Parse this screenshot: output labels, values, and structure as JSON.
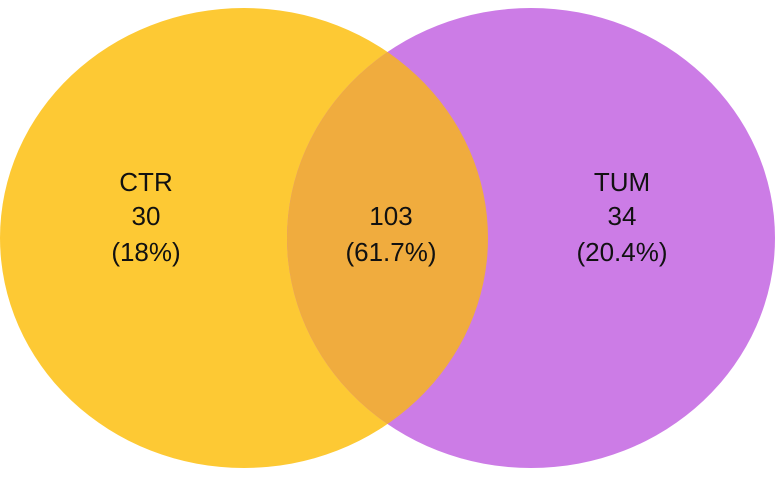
{
  "chart_data": {
    "type": "venn",
    "sets": [
      {
        "name": "CTR",
        "color": "#fdc934"
      },
      {
        "name": "TUM",
        "color": "#cc7ce6"
      }
    ],
    "overlap_color": "#f0ac3e",
    "values": [
      30,
      103,
      34
    ],
    "percent_labels": [
      "(18%)",
      "(61.7%)",
      "(20.4%)"
    ]
  }
}
